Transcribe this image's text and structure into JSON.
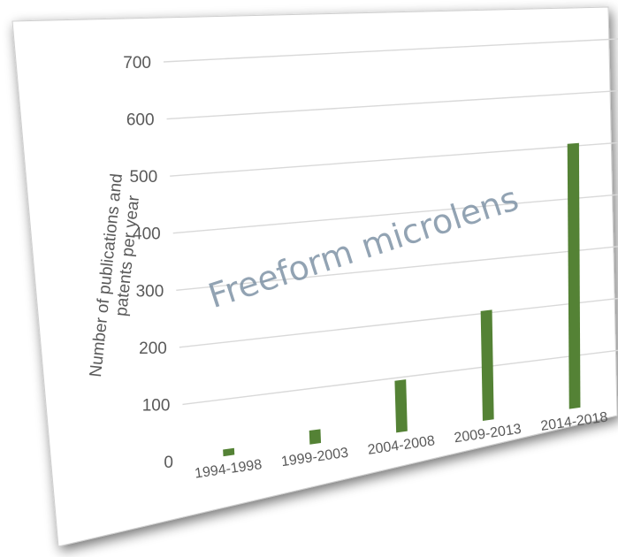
{
  "chart_data": {
    "type": "bar",
    "title": "",
    "annotation": "Freeform microlens",
    "ylabel_line1": "Number  of publications and",
    "ylabel_line2": "patents per year",
    "categories": [
      "1994-1998",
      "1999-2003",
      "2004-2008",
      "2009-2013",
      "2014-2018"
    ],
    "values": [
      12,
      25,
      95,
      205,
      505
    ],
    "ylim": [
      0,
      700
    ],
    "yticks": [
      "0",
      "100",
      "200",
      "300",
      "400",
      "500",
      "600",
      "700"
    ],
    "grid": true,
    "legend": "none",
    "bar_color": "#548235",
    "grid_color": "#d9d9d9",
    "text_color": "#595959"
  }
}
